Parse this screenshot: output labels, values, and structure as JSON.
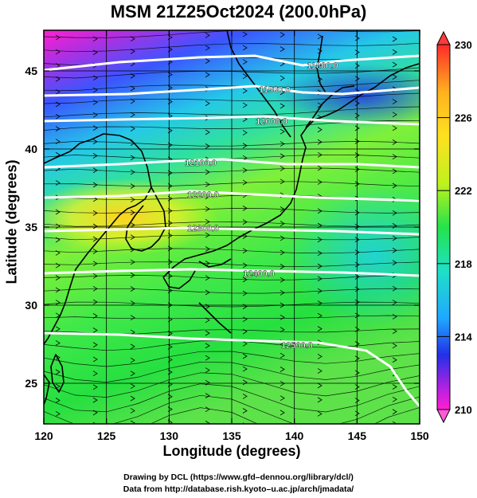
{
  "title": "MSM 21Z25Oct2024 (200.0hPa)",
  "x_axis": {
    "label": "Longitude (degrees)",
    "ticks": [
      120,
      125,
      130,
      135,
      140,
      145,
      150
    ],
    "range": [
      120,
      150
    ]
  },
  "y_axis": {
    "label": "Latitude  (degrees)",
    "ticks": [
      25,
      30,
      35,
      40,
      45
    ],
    "range": [
      22.4,
      47.6
    ]
  },
  "colorbar": {
    "min": 210,
    "max": 230,
    "labels": [
      "230",
      "226",
      "222",
      "218",
      "214",
      "210"
    ],
    "label_values": [
      230,
      226,
      222,
      218,
      214,
      210
    ]
  },
  "contours": [
    {
      "label": "11800.0",
      "value": 11800
    },
    {
      "label": "11900.0",
      "value": 11900
    },
    {
      "label": "12000.0",
      "value": 12000
    },
    {
      "label": "12100.0",
      "value": 12100
    },
    {
      "label": "12200.0",
      "value": 12200
    },
    {
      "label": "12300.0",
      "value": 12300
    },
    {
      "label": "12400.0",
      "value": 12400
    },
    {
      "label": "12500.0",
      "value": 12500
    }
  ],
  "credits": {
    "line1": "Drawing by DCL (https://www.gfd–dennou.org/library/dcl/)",
    "line2": "Data from http://database.rish.kyoto–u.ac.jp/arch/jmadata/"
  },
  "colors": {
    "magenta": "#ff1fd0",
    "purple": "#9a2be0",
    "blue": "#2a3cf0",
    "cyan": "#1fd2e0",
    "green": "#24e34a",
    "yellow": "#d8f21e",
    "orange": "#ffb21f",
    "red": "#ff2a2a",
    "contour": "#ffffff",
    "streamline": "#000000"
  }
}
